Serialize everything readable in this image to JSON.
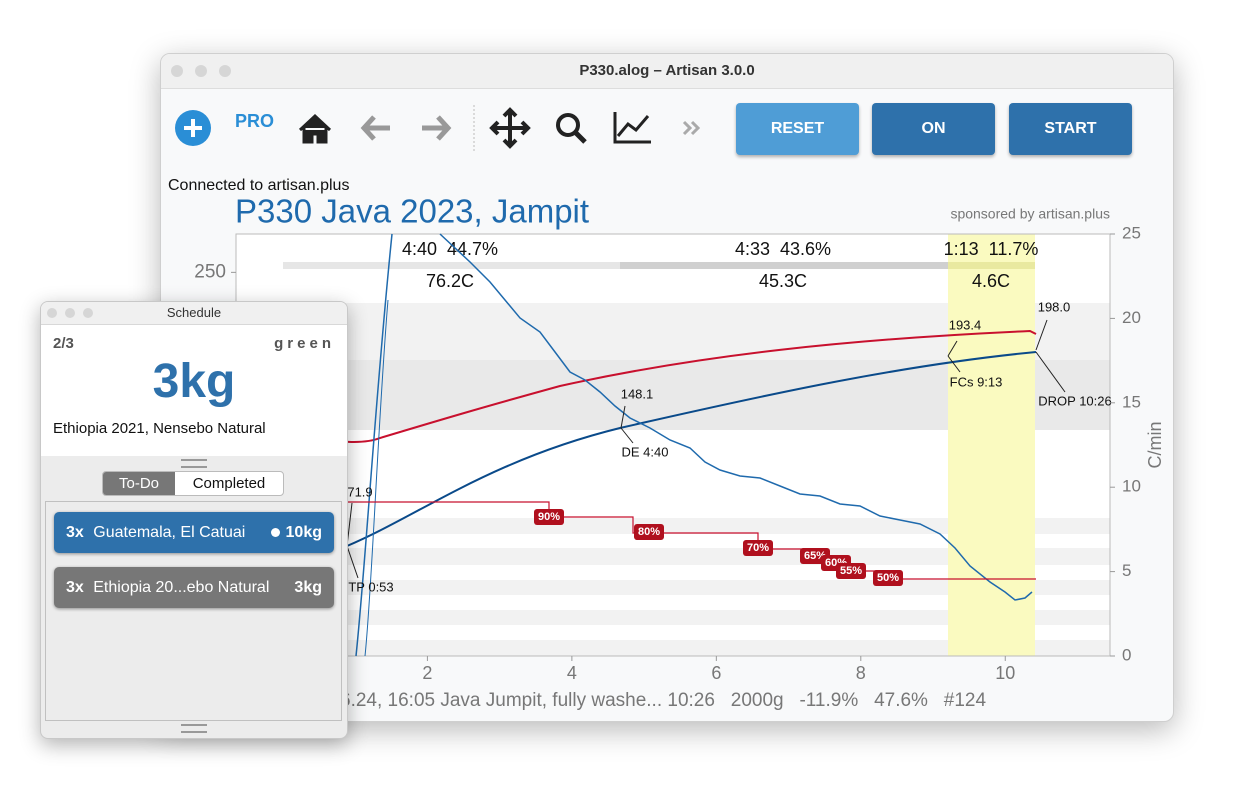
{
  "window": {
    "title": "P330.alog – Artisan 3.0.0"
  },
  "toolbar": {
    "pro": "PRO",
    "buttons": [
      "RESET",
      "ON",
      "START"
    ]
  },
  "status": "Connected to artisan.plus",
  "chart": {
    "title": "P330 Java 2023, Jampit",
    "sponsor": "sponsored by artisan.plus",
    "phases": [
      {
        "time_pct": "4:40  44.7%",
        "delta": "76.2C"
      },
      {
        "time_pct": "4:33  43.6%",
        "delta": "45.3C"
      },
      {
        "time_pct": "1:13  11.7%",
        "delta": "4.6C"
      }
    ],
    "annotations": [
      "193.4",
      "FCs 9:13",
      "198.0",
      "DROP 10:26",
      "148.1",
      "DE 4:40",
      "71.9",
      "TP 0:53"
    ],
    "percent_tags": [
      "90%",
      "80%",
      "70%",
      "65%",
      "60%",
      "55%",
      "50%"
    ],
    "xlim": [
      -0.65,
      11.45
    ],
    "xticks": [
      2,
      4,
      6,
      8,
      10
    ],
    "ylim": [
      0,
      275
    ],
    "yticks": [
      250
    ],
    "y2lim": [
      0,
      25
    ],
    "y2ticks": [
      0,
      5,
      10,
      15,
      20,
      25
    ],
    "y2label": "C/min",
    "footer": "6.24, 16:05 Java Jumpit, fully washe... 10:26   2000g   -11.9%   47.6%   #124"
  },
  "schedule": {
    "title": "Schedule",
    "position": "2/3",
    "tag": "green",
    "weight": "3kg",
    "name": "Ethiopia 2021, Nensebo Natural",
    "tabs": [
      "To-Do",
      "Completed"
    ],
    "items": [
      {
        "count": "3x",
        "name": "Guatemala, El Catuai",
        "weight": "10kg"
      },
      {
        "count": "3x",
        "name": "Ethiopia 20...ebo Natural",
        "weight": "3kg"
      }
    ]
  }
}
